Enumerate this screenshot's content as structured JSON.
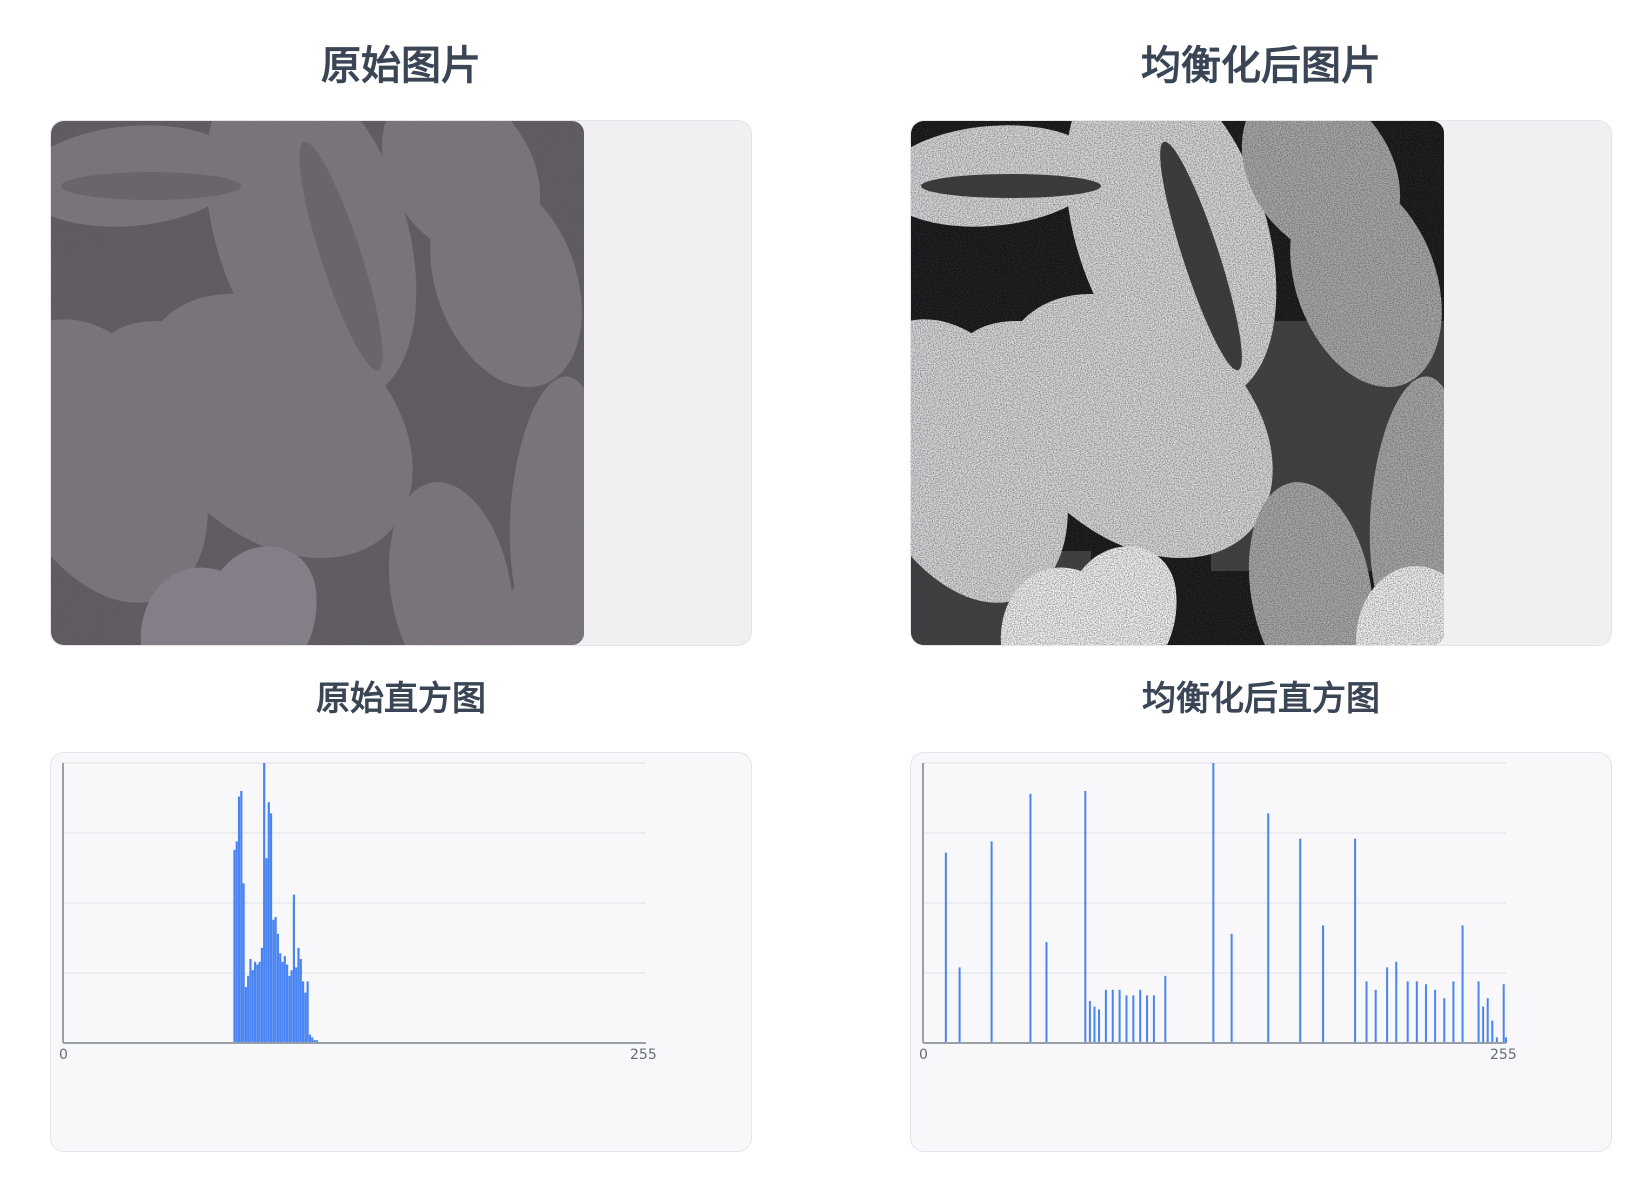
{
  "panels": {
    "original_image_title": "原始图片",
    "equalized_image_title": "均衡化后图片",
    "original_hist_title": "原始直方图",
    "equalized_hist_title": "均衡化后直方图"
  },
  "colors": {
    "bar": "#4a84f0",
    "axis": "#9aa0aa",
    "grid": "#e8e9ee",
    "title": "#3a4656"
  },
  "chart_data": [
    {
      "type": "bar",
      "title": "原始直方图",
      "xlim": [
        0,
        255
      ],
      "ylim": [
        0,
        1
      ],
      "x_tick_labels": [
        "0",
        "255"
      ],
      "x": [
        75,
        76,
        77,
        78,
        79,
        80,
        81,
        82,
        83,
        84,
        85,
        86,
        87,
        88,
        89,
        90,
        91,
        92,
        93,
        94,
        95,
        96,
        97,
        98,
        99,
        100,
        101,
        102,
        103,
        104,
        105,
        106,
        107,
        108,
        109,
        110,
        111
      ],
      "values": [
        0.69,
        0.72,
        0.88,
        0.9,
        0.57,
        0.2,
        0.24,
        0.3,
        0.26,
        0.29,
        0.28,
        0.29,
        0.34,
        1.0,
        0.66,
        0.86,
        0.82,
        0.44,
        0.45,
        0.39,
        0.32,
        0.29,
        0.31,
        0.28,
        0.24,
        0.26,
        0.53,
        0.27,
        0.34,
        0.3,
        0.22,
        0.18,
        0.22,
        0.03,
        0.02,
        0.01,
        0.01
      ]
    },
    {
      "type": "bar",
      "title": "均衡化后直方图",
      "xlim": [
        0,
        255
      ],
      "ylim": [
        0,
        1
      ],
      "x_tick_labels": [
        "0",
        "255"
      ],
      "x": [
        10,
        16,
        30,
        47,
        54,
        71,
        73,
        75,
        77,
        80,
        83,
        86,
        89,
        92,
        95,
        98,
        101,
        106,
        127,
        135,
        151,
        165,
        175,
        189,
        194,
        198,
        203,
        207,
        212,
        216,
        220,
        224,
        228,
        232,
        236,
        243,
        245,
        247,
        249,
        251,
        254,
        255
      ],
      "values": [
        0.68,
        0.27,
        0.72,
        0.89,
        0.36,
        0.9,
        0.15,
        0.13,
        0.12,
        0.19,
        0.19,
        0.19,
        0.17,
        0.17,
        0.19,
        0.17,
        0.17,
        0.24,
        1.0,
        0.39,
        0.82,
        0.73,
        0.42,
        0.73,
        0.22,
        0.19,
        0.27,
        0.29,
        0.22,
        0.22,
        0.21,
        0.19,
        0.16,
        0.22,
        0.42,
        0.22,
        0.13,
        0.16,
        0.08,
        0.02,
        0.21,
        0.02
      ]
    }
  ]
}
